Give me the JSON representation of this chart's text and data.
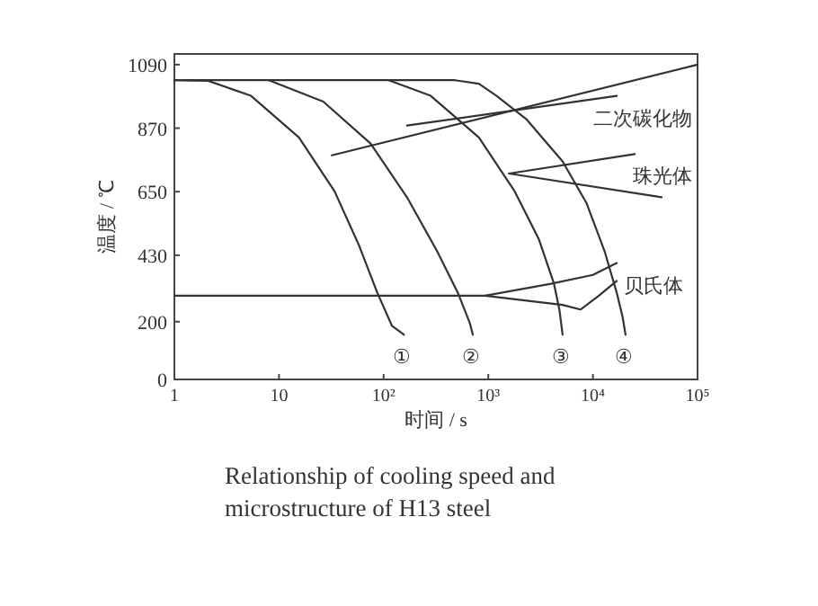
{
  "chart_data": {
    "type": "line",
    "xlabel": "时间 / s",
    "ylabel": "温度 / ℃",
    "log": "x",
    "grid": false,
    "line_style": "solid",
    "xlim": [
      1,
      100000
    ],
    "ylim": [
      0,
      1127
    ],
    "xticks": [
      1,
      10,
      {
        "value": 100,
        "label": "10²"
      },
      {
        "value": 1000,
        "label": "10³"
      },
      {
        "value": 10000,
        "label": "10⁴"
      },
      {
        "value": 100000,
        "label": "10⁵"
      }
    ],
    "yticks": [
      0,
      200,
      430,
      650,
      870,
      1090
    ],
    "series": [
      {
        "name": "①",
        "color": "#333333",
        "x": [
          1,
          2.1,
          5.4,
          15.5,
          34,
          58,
          87,
          120,
          156
        ],
        "values": [
          1036,
          1034,
          982,
          838,
          651,
          465,
          300,
          186,
          155
        ]
      },
      {
        "name": "②",
        "color": "#333333",
        "x": [
          8,
          26.5,
          75,
          167,
          323,
          512,
          665,
          712
        ],
        "values": [
          1036,
          962,
          817,
          631,
          445,
          300,
          196,
          155
        ]
      },
      {
        "name": "③",
        "color": "#333333",
        "x": [
          112,
          282,
          813,
          1790,
          3040,
          4250,
          4800,
          5130
        ],
        "values": [
          1036,
          982,
          838,
          651,
          486,
          331,
          238,
          155
        ]
      },
      {
        "name": "④",
        "color": "#333333",
        "x": [
          1,
          480,
          813,
          1200,
          2330,
          5130,
          8700,
          12900,
          16900,
          19200,
          20500
        ],
        "values": [
          1036,
          1036,
          1024,
          982,
          900,
          755,
          610,
          445,
          300,
          217,
          155
        ]
      },
      {
        "name": "贝氏体",
        "color": "#333333",
        "x": [
          1,
          930,
          3970,
          10000,
          16900
        ],
        "values": [
          290,
          290,
          331,
          362,
          403
        ]
      },
      {
        "color": "#333333",
        "x": [
          930,
          5130,
          7600,
          11400,
          16900
        ],
        "values": [
          290,
          258,
          242,
          290,
          341
        ]
      },
      {
        "color": "#333333",
        "x": [
          32,
          100000
        ],
        "values": [
          776,
          1090
        ]
      },
      {
        "name": "二次碳化物",
        "color": "#333333",
        "x": [
          167,
          16900
        ],
        "values": [
          879,
          982
        ]
      },
      {
        "name": "珠光体",
        "color": "#333333",
        "x": [
          1580,
          25100
        ],
        "values": [
          713,
          780
        ]
      },
      {
        "color": "#333333",
        "x": [
          1580,
          45400
        ],
        "values": [
          713,
          631
        ]
      }
    ],
    "annotations": [
      "Relationship of cooling speed and microstructure of H13 steel"
    ]
  }
}
